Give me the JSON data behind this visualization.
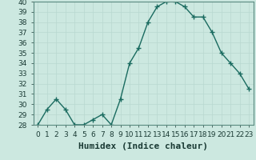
{
  "x": [
    0,
    1,
    2,
    3,
    4,
    5,
    6,
    7,
    8,
    9,
    10,
    11,
    12,
    13,
    14,
    15,
    16,
    17,
    18,
    19,
    20,
    21,
    22,
    23
  ],
  "y": [
    28,
    29.5,
    30.5,
    29.5,
    28,
    28,
    28.5,
    29,
    28,
    30.5,
    34,
    35.5,
    38,
    39.5,
    40,
    40,
    39.5,
    38.5,
    38.5,
    37,
    35,
    34,
    33,
    31.5
  ],
  "line_color": "#1a6b60",
  "marker": "+",
  "marker_size": 4,
  "bg_color": "#cce8e0",
  "grid_color": "#b8d8d0",
  "xlabel": "Humidex (Indice chaleur)",
  "ylim": [
    28,
    40
  ],
  "xlim": [
    -0.5,
    23.5
  ],
  "yticks": [
    28,
    29,
    30,
    31,
    32,
    33,
    34,
    35,
    36,
    37,
    38,
    39,
    40
  ],
  "xticks": [
    0,
    1,
    2,
    3,
    4,
    5,
    6,
    7,
    8,
    9,
    10,
    11,
    12,
    13,
    14,
    15,
    16,
    17,
    18,
    19,
    20,
    21,
    22,
    23
  ],
  "tick_label_fontsize": 6.5,
  "xlabel_fontsize": 8,
  "line_width": 1.0,
  "marker_linewidth": 1.0
}
